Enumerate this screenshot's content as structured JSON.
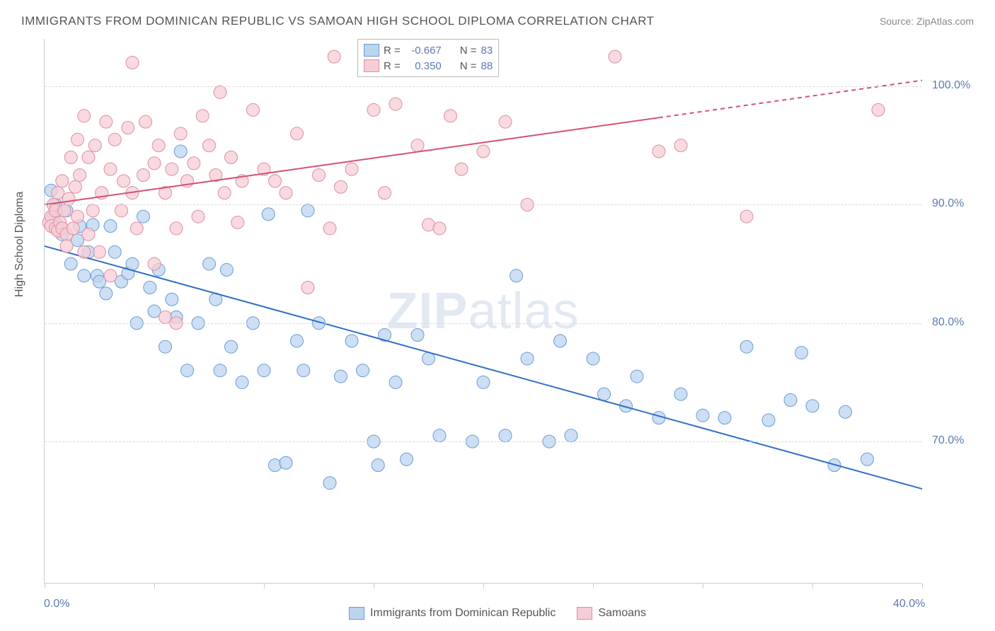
{
  "title": "IMMIGRANTS FROM DOMINICAN REPUBLIC VS SAMOAN HIGH SCHOOL DIPLOMA CORRELATION CHART",
  "source": "Source: ZipAtlas.com",
  "watermark_bold": "ZIP",
  "watermark_light": "atlas",
  "ylabel": "High School Diploma",
  "chart": {
    "type": "scatter",
    "xlim": [
      0,
      40
    ],
    "ylim": [
      58,
      104
    ],
    "x_ticks": [
      0,
      5,
      10,
      15,
      20,
      25,
      30,
      35,
      40
    ],
    "y_ticks": [
      70,
      80,
      90,
      100
    ],
    "y_tick_labels": [
      "70.0%",
      "80.0%",
      "90.0%",
      "100.0%"
    ],
    "x_tick_labels_visible": {
      "0": "0.0%",
      "40": "40.0%"
    },
    "grid_color": "#d8d8d8",
    "axis_color": "#cccccc",
    "background_color": "#ffffff",
    "tick_label_color": "#5b7bb5",
    "title_color": "#555555",
    "series": [
      {
        "name": "Immigrants from Dominican Republic",
        "marker_fill": "#bcd4f0",
        "marker_stroke": "#6a9ad4",
        "marker_opacity": 0.75,
        "marker_radius": 9,
        "line_color": "#2f6fc5",
        "line_width": 2,
        "R": "-0.667",
        "N": "83",
        "regression": {
          "x1": 0,
          "y1": 86.5,
          "x2": 40,
          "y2": 66.0,
          "dashed_from": null
        },
        "points": [
          [
            0.3,
            91.2
          ],
          [
            0.4,
            89.0
          ],
          [
            0.5,
            88.5
          ],
          [
            0.5,
            90.0
          ],
          [
            0.6,
            88.0
          ],
          [
            0.8,
            87.5
          ],
          [
            1.0,
            89.5
          ],
          [
            1.2,
            85.0
          ],
          [
            1.5,
            87.0
          ],
          [
            1.6,
            88.2
          ],
          [
            1.8,
            84.0
          ],
          [
            2.0,
            86.0
          ],
          [
            2.2,
            88.3
          ],
          [
            2.4,
            84.0
          ],
          [
            2.5,
            83.5
          ],
          [
            2.8,
            82.5
          ],
          [
            3.0,
            88.2
          ],
          [
            3.2,
            86.0
          ],
          [
            3.5,
            83.5
          ],
          [
            3.8,
            84.2
          ],
          [
            4.0,
            85.0
          ],
          [
            4.2,
            80.0
          ],
          [
            4.5,
            89.0
          ],
          [
            4.8,
            83.0
          ],
          [
            5.0,
            81.0
          ],
          [
            5.2,
            84.5
          ],
          [
            5.5,
            78.0
          ],
          [
            5.8,
            82.0
          ],
          [
            6.0,
            80.5
          ],
          [
            6.2,
            94.5
          ],
          [
            6.5,
            76.0
          ],
          [
            7.0,
            80.0
          ],
          [
            7.5,
            85.0
          ],
          [
            7.8,
            82.0
          ],
          [
            8.0,
            76.0
          ],
          [
            8.3,
            84.5
          ],
          [
            8.5,
            78.0
          ],
          [
            9.0,
            75.0
          ],
          [
            9.5,
            80.0
          ],
          [
            10.0,
            76.0
          ],
          [
            10.2,
            89.2
          ],
          [
            10.5,
            68.0
          ],
          [
            11.0,
            68.2
          ],
          [
            11.5,
            78.5
          ],
          [
            11.8,
            76.0
          ],
          [
            12.0,
            89.5
          ],
          [
            12.5,
            80.0
          ],
          [
            13.0,
            66.5
          ],
          [
            13.5,
            75.5
          ],
          [
            14.0,
            78.5
          ],
          [
            14.5,
            76.0
          ],
          [
            15.0,
            70.0
          ],
          [
            15.2,
            68.0
          ],
          [
            15.5,
            79.0
          ],
          [
            16.0,
            75.0
          ],
          [
            16.5,
            68.5
          ],
          [
            17.0,
            79.0
          ],
          [
            17.5,
            77.0
          ],
          [
            18.0,
            70.5
          ],
          [
            19.5,
            70.0
          ],
          [
            20.0,
            75.0
          ],
          [
            21.0,
            70.5
          ],
          [
            21.5,
            84.0
          ],
          [
            22.0,
            77.0
          ],
          [
            23.0,
            70.0
          ],
          [
            23.5,
            78.5
          ],
          [
            24.0,
            70.5
          ],
          [
            25.0,
            77.0
          ],
          [
            25.5,
            74.0
          ],
          [
            26.5,
            73.0
          ],
          [
            27.0,
            75.5
          ],
          [
            28.0,
            72.0
          ],
          [
            29.0,
            74.0
          ],
          [
            30.0,
            72.2
          ],
          [
            31.0,
            72.0
          ],
          [
            32.0,
            78.0
          ],
          [
            33.0,
            71.8
          ],
          [
            34.0,
            73.5
          ],
          [
            34.5,
            77.5
          ],
          [
            35.0,
            73.0
          ],
          [
            36.0,
            68.0
          ],
          [
            36.5,
            72.5
          ],
          [
            37.5,
            68.5
          ]
        ]
      },
      {
        "name": "Samoans",
        "marker_fill": "#f6cdd6",
        "marker_stroke": "#df8ca1",
        "marker_opacity": 0.75,
        "marker_radius": 9,
        "line_color": "#d6506f",
        "line_width": 2,
        "R": "0.350",
        "N": "88",
        "regression": {
          "x1": 0,
          "y1": 90.0,
          "x2": 40,
          "y2": 100.5,
          "dashed_from": 28
        },
        "points": [
          [
            0.2,
            88.5
          ],
          [
            0.3,
            89.0
          ],
          [
            0.3,
            88.2
          ],
          [
            0.4,
            90.0
          ],
          [
            0.5,
            89.5
          ],
          [
            0.5,
            88.0
          ],
          [
            0.6,
            87.8
          ],
          [
            0.6,
            91.0
          ],
          [
            0.7,
            88.5
          ],
          [
            0.8,
            92.0
          ],
          [
            0.8,
            88.0
          ],
          [
            0.9,
            89.5
          ],
          [
            1.0,
            87.5
          ],
          [
            1.0,
            86.5
          ],
          [
            1.1,
            90.5
          ],
          [
            1.2,
            94.0
          ],
          [
            1.3,
            88.0
          ],
          [
            1.4,
            91.5
          ],
          [
            1.5,
            95.5
          ],
          [
            1.5,
            89.0
          ],
          [
            1.6,
            92.5
          ],
          [
            1.8,
            86.0
          ],
          [
            1.8,
            97.5
          ],
          [
            2.0,
            94.0
          ],
          [
            2.0,
            87.5
          ],
          [
            2.2,
            89.5
          ],
          [
            2.3,
            95.0
          ],
          [
            2.5,
            86.0
          ],
          [
            2.6,
            91.0
          ],
          [
            2.8,
            97.0
          ],
          [
            3.0,
            93.0
          ],
          [
            3.0,
            84.0
          ],
          [
            3.2,
            95.5
          ],
          [
            3.5,
            89.5
          ],
          [
            3.6,
            92.0
          ],
          [
            3.8,
            96.5
          ],
          [
            4.0,
            91.0
          ],
          [
            4.0,
            102.0
          ],
          [
            4.2,
            88.0
          ],
          [
            4.5,
            92.5
          ],
          [
            4.6,
            97.0
          ],
          [
            5.0,
            93.5
          ],
          [
            5.0,
            85.0
          ],
          [
            5.2,
            95.0
          ],
          [
            5.5,
            91.0
          ],
          [
            5.5,
            80.5
          ],
          [
            5.8,
            93.0
          ],
          [
            6.0,
            80.0
          ],
          [
            6.0,
            88.0
          ],
          [
            6.2,
            96.0
          ],
          [
            6.5,
            92.0
          ],
          [
            6.8,
            93.5
          ],
          [
            7.0,
            89.0
          ],
          [
            7.2,
            97.5
          ],
          [
            7.5,
            95.0
          ],
          [
            7.8,
            92.5
          ],
          [
            8.0,
            99.5
          ],
          [
            8.2,
            91.0
          ],
          [
            8.5,
            94.0
          ],
          [
            8.8,
            88.5
          ],
          [
            9.0,
            92.0
          ],
          [
            9.5,
            98.0
          ],
          [
            10.0,
            93.0
          ],
          [
            10.5,
            92.0
          ],
          [
            11.0,
            91.0
          ],
          [
            11.5,
            96.0
          ],
          [
            12.0,
            83.0
          ],
          [
            12.5,
            92.5
          ],
          [
            13.0,
            88.0
          ],
          [
            13.2,
            102.5
          ],
          [
            13.5,
            91.5
          ],
          [
            14.0,
            93.0
          ],
          [
            15.0,
            98.0
          ],
          [
            15.5,
            91.0
          ],
          [
            16.0,
            98.5
          ],
          [
            17.0,
            95.0
          ],
          [
            17.5,
            88.3
          ],
          [
            18.0,
            88.0
          ],
          [
            18.5,
            97.5
          ],
          [
            19.0,
            93.0
          ],
          [
            20.0,
            94.5
          ],
          [
            21.0,
            97.0
          ],
          [
            22.0,
            90.0
          ],
          [
            26.0,
            102.5
          ],
          [
            28.0,
            94.5
          ],
          [
            29.0,
            95.0
          ],
          [
            32.0,
            89.0
          ],
          [
            38.0,
            98.0
          ]
        ]
      }
    ]
  },
  "top_legend": {
    "rows": [
      {
        "swatch_fill": "#bcd4f0",
        "swatch_stroke": "#6a9ad4",
        "R_label": "R =",
        "R": "-0.667",
        "N_label": "N =",
        "N": "83"
      },
      {
        "swatch_fill": "#f6cdd6",
        "swatch_stroke": "#df8ca1",
        "R_label": "R =",
        "R": "0.350",
        "N_label": "N =",
        "N": "88"
      }
    ]
  },
  "bottom_legend": {
    "items": [
      {
        "swatch_fill": "#bcd4f0",
        "swatch_stroke": "#6a9ad4",
        "label": "Immigrants from Dominican Republic"
      },
      {
        "swatch_fill": "#f6cdd6",
        "swatch_stroke": "#df8ca1",
        "label": "Samoans"
      }
    ]
  }
}
